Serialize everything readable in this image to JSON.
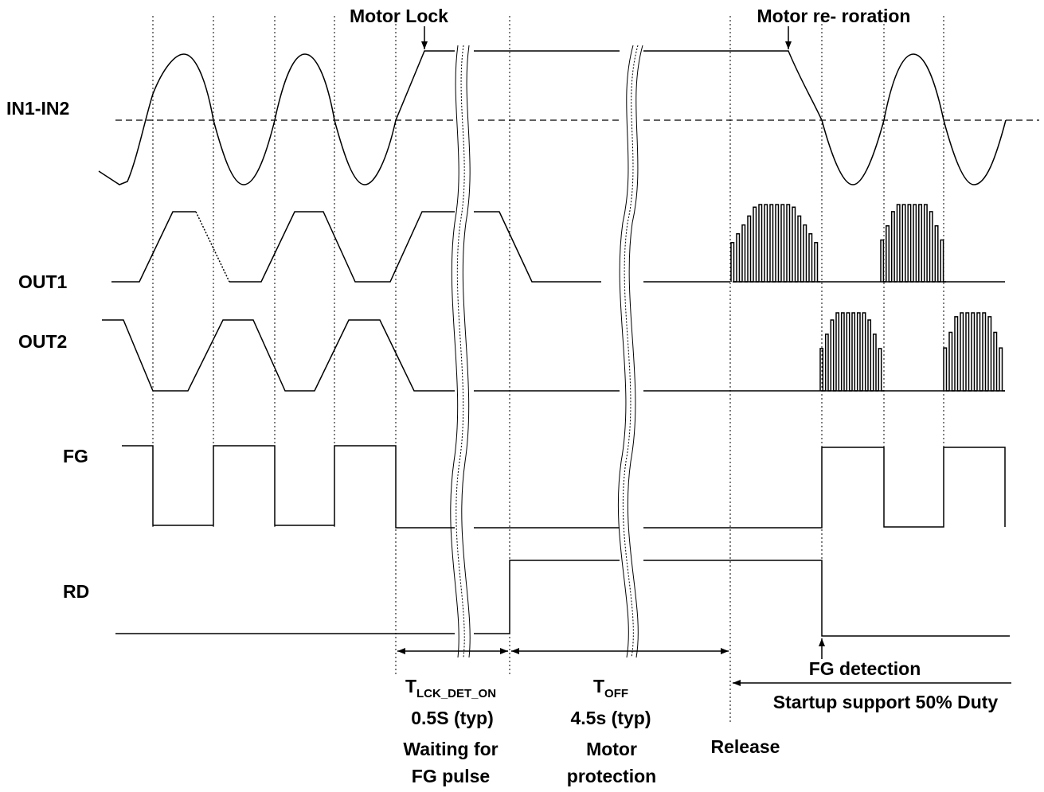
{
  "signals": {
    "in": "IN1-IN2",
    "out1": "OUT1",
    "out2": "OUT2",
    "fg": "FG",
    "rd": "RD"
  },
  "annotations": {
    "motor_lock": "Motor Lock",
    "motor_reroration": "Motor re- roration",
    "fg_detection": "FG detection",
    "startup_support": "Startup support 50% Duty",
    "release": "Release"
  },
  "timings": {
    "lck_symbol": "T",
    "lck_sub": "LCK_DET_ON",
    "lck_value": "0.5S (typ)",
    "lck_desc_1": "Waiting for",
    "lck_desc_2": "FG pulse",
    "off_symbol": "T",
    "off_sub": "OFF",
    "off_value": "4.5s (typ)",
    "off_desc_1": "Motor",
    "off_desc_2": "protection"
  }
}
